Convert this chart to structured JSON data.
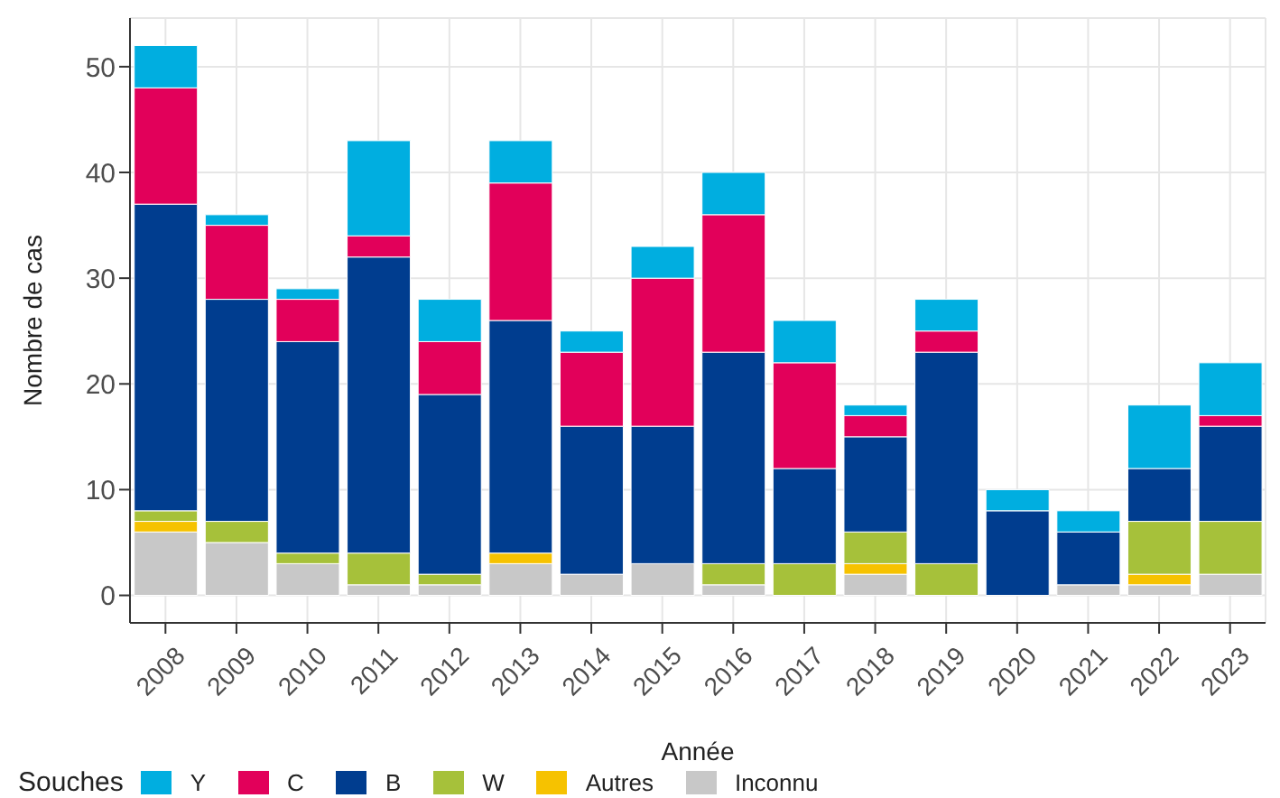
{
  "chart_data": {
    "type": "bar",
    "stacked": true,
    "xlabel": "Année",
    "ylabel": "Nombre de cas",
    "legend_title": "Souches",
    "legend": "bottom",
    "grid": true,
    "categories": [
      "2008",
      "2009",
      "2010",
      "2011",
      "2012",
      "2013",
      "2014",
      "2015",
      "2016",
      "2017",
      "2018",
      "2019",
      "2020",
      "2021",
      "2022",
      "2023"
    ],
    "ylim": [
      -2.6,
      54.6
    ],
    "yticks": [
      0,
      10,
      20,
      30,
      40,
      50
    ],
    "series": [
      {
        "name": "Inconnu",
        "color": "#c8c8c8",
        "values": [
          6,
          5,
          3,
          1,
          1,
          3,
          2,
          3,
          1,
          0,
          2,
          0,
          0,
          1,
          1,
          2
        ]
      },
      {
        "name": "Autres",
        "color": "#f6c200",
        "values": [
          1,
          0,
          0,
          0,
          0,
          1,
          0,
          0,
          0,
          0,
          1,
          0,
          0,
          0,
          1,
          0
        ]
      },
      {
        "name": "W",
        "color": "#a6c13a",
        "values": [
          1,
          2,
          1,
          3,
          1,
          0,
          0,
          0,
          2,
          3,
          3,
          3,
          0,
          0,
          5,
          5
        ]
      },
      {
        "name": "B",
        "color": "#003d8f",
        "values": [
          29,
          21,
          20,
          28,
          17,
          22,
          14,
          13,
          20,
          9,
          9,
          20,
          8,
          5,
          5,
          9
        ]
      },
      {
        "name": "C",
        "color": "#e2005a",
        "values": [
          11,
          7,
          4,
          2,
          5,
          13,
          7,
          14,
          13,
          10,
          2,
          2,
          0,
          0,
          0,
          1
        ]
      },
      {
        "name": "Y",
        "color": "#00aee0",
        "values": [
          4,
          1,
          1,
          9,
          4,
          4,
          2,
          3,
          4,
          4,
          1,
          3,
          2,
          2,
          6,
          5
        ]
      }
    ]
  }
}
